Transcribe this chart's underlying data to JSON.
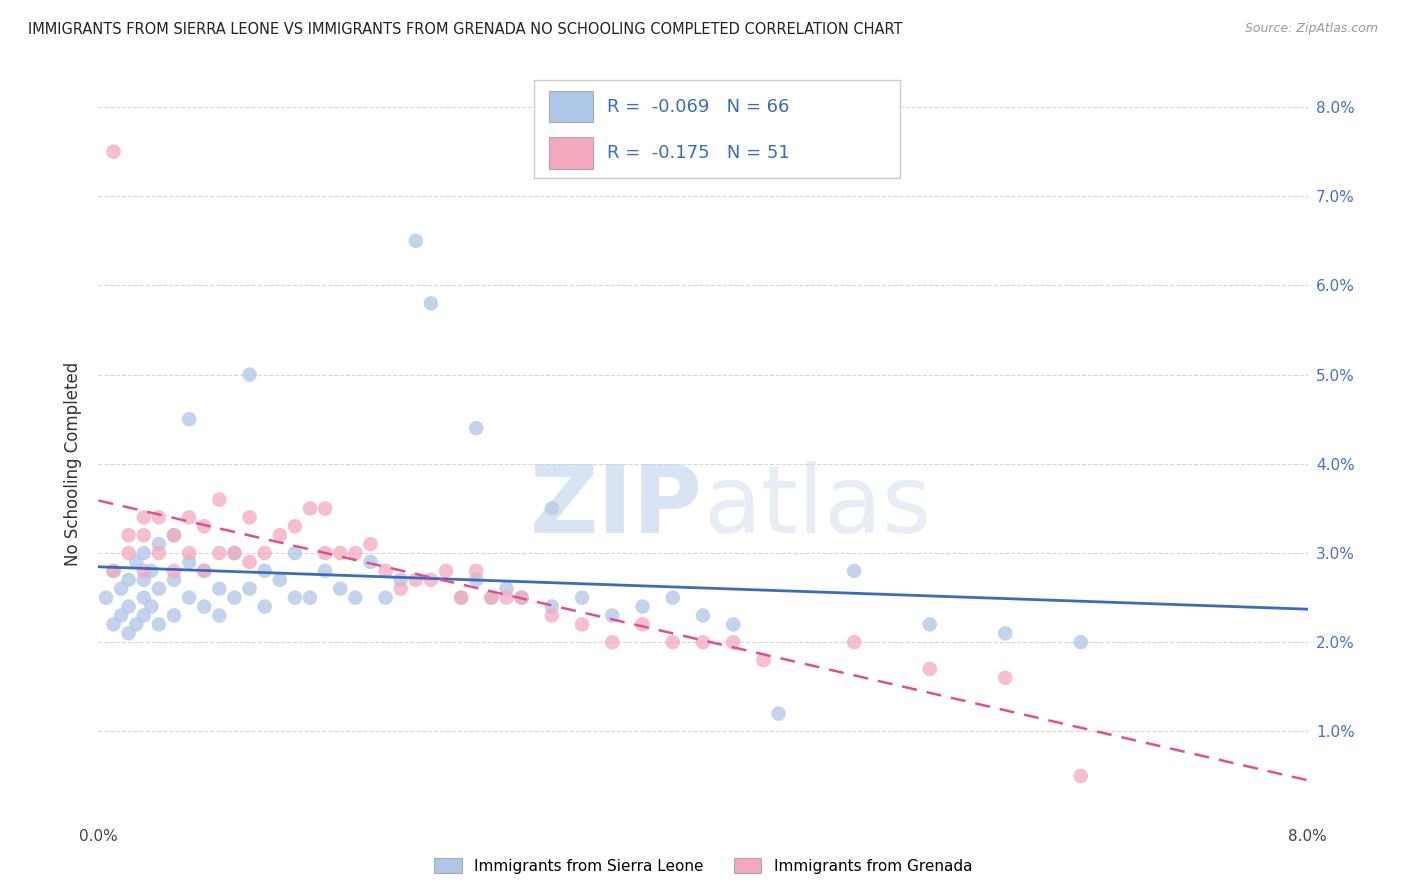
{
  "title": "IMMIGRANTS FROM SIERRA LEONE VS IMMIGRANTS FROM GRENADA NO SCHOOLING COMPLETED CORRELATION CHART",
  "source": "Source: ZipAtlas.com",
  "ylabel": "No Schooling Completed",
  "legend_label1": "Immigrants from Sierra Leone",
  "legend_label2": "Immigrants from Grenada",
  "R1": -0.069,
  "N1": 66,
  "R2": -0.175,
  "N2": 51,
  "color1": "#aec6e8",
  "color2": "#f4a8be",
  "line_color1": "#3a6bbf",
  "line_color2": "#e05090",
  "xlim": [
    0.0,
    0.08
  ],
  "ylim": [
    0.0,
    0.08
  ],
  "watermark_zip": "ZIP",
  "watermark_atlas": "atlas",
  "sl_x": [
    0.0005,
    0.001,
    0.001,
    0.0015,
    0.0015,
    0.002,
    0.002,
    0.002,
    0.0025,
    0.0025,
    0.003,
    0.003,
    0.003,
    0.003,
    0.0035,
    0.0035,
    0.004,
    0.004,
    0.004,
    0.005,
    0.005,
    0.005,
    0.006,
    0.006,
    0.006,
    0.007,
    0.007,
    0.008,
    0.008,
    0.009,
    0.009,
    0.01,
    0.01,
    0.011,
    0.011,
    0.012,
    0.013,
    0.013,
    0.014,
    0.015,
    0.016,
    0.017,
    0.018,
    0.019,
    0.02,
    0.021,
    0.022,
    0.024,
    0.025,
    0.026,
    0.027,
    0.028,
    0.03,
    0.032,
    0.034,
    0.036,
    0.025,
    0.03,
    0.05,
    0.055,
    0.06,
    0.065,
    0.038,
    0.04,
    0.042,
    0.045
  ],
  "sl_y": [
    0.025,
    0.022,
    0.028,
    0.023,
    0.026,
    0.021,
    0.024,
    0.027,
    0.022,
    0.029,
    0.023,
    0.025,
    0.027,
    0.03,
    0.024,
    0.028,
    0.022,
    0.026,
    0.031,
    0.023,
    0.027,
    0.032,
    0.025,
    0.029,
    0.045,
    0.024,
    0.028,
    0.023,
    0.026,
    0.025,
    0.03,
    0.026,
    0.05,
    0.024,
    0.028,
    0.027,
    0.025,
    0.03,
    0.025,
    0.028,
    0.026,
    0.025,
    0.029,
    0.025,
    0.027,
    0.065,
    0.058,
    0.025,
    0.027,
    0.025,
    0.026,
    0.025,
    0.024,
    0.025,
    0.023,
    0.024,
    0.044,
    0.035,
    0.028,
    0.022,
    0.021,
    0.02,
    0.025,
    0.023,
    0.022,
    0.012
  ],
  "gr_x": [
    0.001,
    0.001,
    0.002,
    0.002,
    0.003,
    0.003,
    0.003,
    0.004,
    0.004,
    0.005,
    0.005,
    0.006,
    0.006,
    0.007,
    0.007,
    0.008,
    0.008,
    0.009,
    0.01,
    0.01,
    0.011,
    0.012,
    0.013,
    0.014,
    0.015,
    0.015,
    0.016,
    0.017,
    0.018,
    0.019,
    0.02,
    0.021,
    0.022,
    0.023,
    0.024,
    0.025,
    0.026,
    0.027,
    0.028,
    0.03,
    0.032,
    0.034,
    0.036,
    0.038,
    0.04,
    0.042,
    0.044,
    0.05,
    0.055,
    0.06,
    0.065
  ],
  "gr_y": [
    0.075,
    0.028,
    0.032,
    0.03,
    0.028,
    0.032,
    0.034,
    0.03,
    0.034,
    0.028,
    0.032,
    0.03,
    0.034,
    0.028,
    0.033,
    0.03,
    0.036,
    0.03,
    0.029,
    0.034,
    0.03,
    0.032,
    0.033,
    0.035,
    0.03,
    0.035,
    0.03,
    0.03,
    0.031,
    0.028,
    0.026,
    0.027,
    0.027,
    0.028,
    0.025,
    0.028,
    0.025,
    0.025,
    0.025,
    0.023,
    0.022,
    0.02,
    0.022,
    0.02,
    0.02,
    0.02,
    0.018,
    0.02,
    0.017,
    0.016,
    0.005
  ]
}
